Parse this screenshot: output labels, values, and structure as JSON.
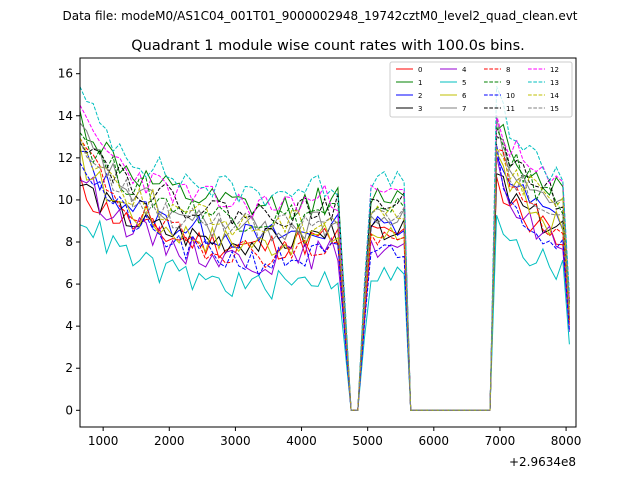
{
  "chart_data": {
    "type": "line",
    "suptitle": "Data file: modeM0/AS1C04_001T01_9000002948_19742cztM0_level2_quad_clean.evt",
    "title": "Quadrant 1 module wise count rates with 100.0s bins.",
    "xlabel": "",
    "ylabel": "",
    "offset_text": "+2.9634e8",
    "xlim": [
      650,
      8150
    ],
    "ylim": [
      0,
      16
    ],
    "x_ticks": [
      1000,
      2000,
      3000,
      4000,
      5000,
      6000,
      7000,
      8000
    ],
    "y_ticks": [
      0,
      2,
      4,
      6,
      8,
      10,
      12,
      14,
      16
    ],
    "legend_position": "upper right",
    "gap_rate": 0,
    "series": [
      {
        "name": "0",
        "color": "#ff0000",
        "dash": "solid",
        "level": 7.6,
        "trend": 3.0,
        "seed": 11
      },
      {
        "name": "1",
        "color": "#008000",
        "dash": "solid",
        "level": 9.4,
        "trend": 4.5,
        "seed": 12
      },
      {
        "name": "2",
        "color": "#0000ff",
        "dash": "solid",
        "level": 8.0,
        "trend": 4.2,
        "seed": 13
      },
      {
        "name": "3",
        "color": "#000000",
        "dash": "solid",
        "level": 7.8,
        "trend": 3.0,
        "seed": 14
      },
      {
        "name": "4",
        "color": "#9400d3",
        "dash": "solid",
        "level": 6.9,
        "trend": 4.4,
        "seed": 15
      },
      {
        "name": "5",
        "color": "#00bfbf",
        "dash": "solid",
        "level": 5.7,
        "trend": 3.7,
        "seed": 16
      },
      {
        "name": "6",
        "color": "#bfbf00",
        "dash": "solid",
        "level": 7.7,
        "trend": 4.3,
        "seed": 17
      },
      {
        "name": "7",
        "color": "#808080",
        "dash": "solid",
        "level": 8.3,
        "trend": 5.0,
        "seed": 18
      },
      {
        "name": "8",
        "color": "#ff0000",
        "dash": "dashed",
        "level": 7.2,
        "trend": 5.6,
        "seed": 19
      },
      {
        "name": "9",
        "color": "#008000",
        "dash": "dashed",
        "level": 8.9,
        "trend": 4.4,
        "seed": 20
      },
      {
        "name": "10",
        "color": "#0000ff",
        "dash": "dashed",
        "level": 6.8,
        "trend": 5.3,
        "seed": 21
      },
      {
        "name": "11",
        "color": "#000000",
        "dash": "dashed",
        "level": 9.1,
        "trend": 4.2,
        "seed": 22
      },
      {
        "name": "12",
        "color": "#ff00ff",
        "dash": "dashed",
        "level": 9.5,
        "trend": 4.4,
        "seed": 23
      },
      {
        "name": "13",
        "color": "#00bfbf",
        "dash": "dashed",
        "level": 10.1,
        "trend": 4.9,
        "seed": 24
      },
      {
        "name": "14",
        "color": "#bfbf00",
        "dash": "dashed",
        "level": 8.6,
        "trend": 4.2,
        "seed": 25
      },
      {
        "name": "15",
        "color": "#808080",
        "dash": "dashed",
        "level": 8.4,
        "trend": 4.5,
        "seed": 26
      }
    ]
  }
}
